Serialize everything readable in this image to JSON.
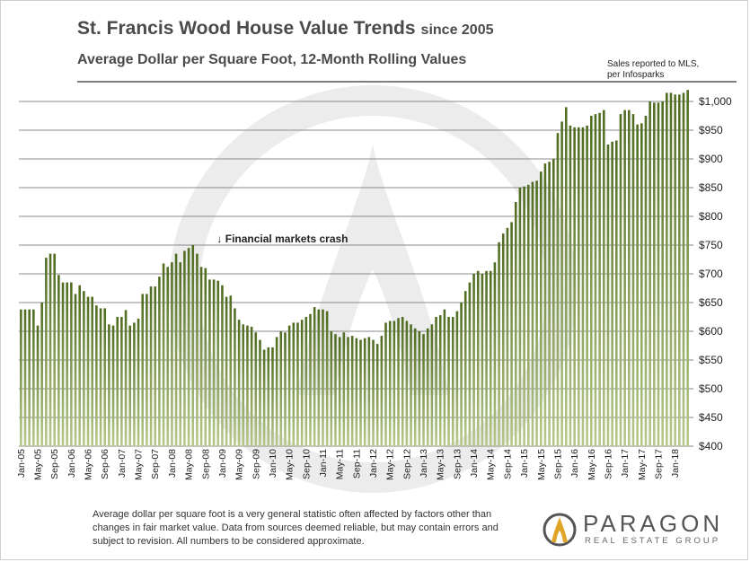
{
  "header": {
    "title_main": "St. Francis Wood House Value Trends",
    "title_since": "since 2005",
    "subtitle": "Average Dollar per Square Foot, 12-Month Rolling Values",
    "source_line1": "Sales reported to MLS,",
    "source_line2": "per Infosparks"
  },
  "footer": {
    "footnote_line1": "Average dollar per square foot is a very general statistic often affected by factors other than",
    "footnote_line2": "changes in fair market value. Data from sources deemed reliable, but may contain errors and",
    "footnote_line3": "subject to revision. All numbers to be considered approximate.",
    "brand_name": "PARAGON",
    "brand_sub": "REAL ESTATE GROUP"
  },
  "colors": {
    "bar_top": "#4e6b1f",
    "bar_bottom": "#b7c98a",
    "grid": "#8a8a8a",
    "watermark": "#ececec",
    "logo_gold": "#e0a526",
    "logo_dark": "#555555"
  },
  "chart_data": {
    "type": "bar",
    "title": "St. Francis Wood House Value Trends since 2005",
    "subtitle": "Average Dollar per Square Foot, 12-Month Rolling Values",
    "xlabel": "",
    "ylabel": "",
    "ylim": [
      400,
      1025
    ],
    "yticks": [
      400,
      450,
      500,
      550,
      600,
      650,
      700,
      750,
      800,
      850,
      900,
      950,
      1000
    ],
    "ytick_labels": [
      "$400",
      "$450",
      "$500",
      "$550",
      "$600",
      "$650",
      "$700",
      "$750",
      "$800",
      "$850",
      "$900",
      "$950",
      "$1,000"
    ],
    "grid": true,
    "tick_labels": [
      "Jan-05",
      "May-05",
      "Sep-05",
      "Jan-06",
      "May-06",
      "Sep-06",
      "Jan-07",
      "May-07",
      "Sep-07",
      "Jan-08",
      "May-08",
      "Sep-08",
      "Jan-09",
      "May-09",
      "Sep-09",
      "Jan-10",
      "May-10",
      "Sep-10",
      "Jan-11",
      "May-11",
      "Sep-11",
      "Jan-12",
      "May-12",
      "Sep-12",
      "Jan-13",
      "May-13",
      "Sep-13",
      "Jan-14",
      "May-14",
      "Sep-14",
      "Jan-15",
      "May-15",
      "Sep-15",
      "Jan-16",
      "May-16",
      "Sep-16",
      "Jan-17",
      "May-17",
      "Sep-17",
      "Jan-18"
    ],
    "annotation": {
      "text": "↓ Financial markets crash",
      "category_index": 45,
      "value": 750
    },
    "values": [
      638,
      638,
      638,
      638,
      610,
      650,
      728,
      735,
      735,
      698,
      685,
      685,
      685,
      665,
      680,
      670,
      660,
      660,
      645,
      640,
      640,
      612,
      610,
      625,
      625,
      637,
      610,
      615,
      622,
      665,
      665,
      678,
      678,
      695,
      718,
      712,
      720,
      735,
      720,
      740,
      745,
      750,
      735,
      712,
      710,
      690,
      690,
      688,
      680,
      660,
      662,
      640,
      620,
      612,
      610,
      608,
      598,
      585,
      568,
      572,
      572,
      590,
      600,
      598,
      610,
      615,
      615,
      620,
      625,
      630,
      642,
      638,
      638,
      635,
      600,
      595,
      590,
      598,
      590,
      592,
      588,
      585,
      588,
      590,
      585,
      578,
      592,
      615,
      618,
      618,
      623,
      625,
      618,
      612,
      605,
      600,
      595,
      605,
      612,
      625,
      628,
      638,
      625,
      625,
      635,
      650,
      670,
      685,
      700,
      705,
      700,
      705,
      705,
      720,
      755,
      770,
      780,
      790,
      825,
      850,
      852,
      855,
      860,
      862,
      878,
      892,
      895,
      900,
      945,
      965,
      990,
      958,
      955,
      955,
      955,
      958,
      975,
      978,
      980,
      985,
      925,
      930,
      932,
      978,
      985,
      985,
      978,
      960,
      962,
      975,
      1000,
      998,
      998,
      1000,
      1015,
      1015,
      1012,
      1012,
      1015,
      1020
    ]
  }
}
